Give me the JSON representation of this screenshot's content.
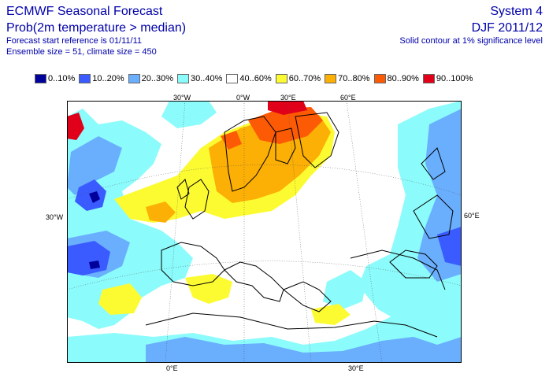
{
  "header": {
    "title": "ECMWF Seasonal Forecast",
    "subtitle": "Prob(2m temperature > median)",
    "forecast_start": "Forecast start reference is 01/11/11",
    "ensemble": "Ensemble size = 51, climate size = 450",
    "system": "System 4",
    "period": "DJF 2011/12",
    "contour_note": "Solid contour at 1% significance level"
  },
  "legend": [
    {
      "label": "0..10%",
      "color": "#00009b"
    },
    {
      "label": "10..20%",
      "color": "#3a5bff"
    },
    {
      "label": "20..30%",
      "color": "#6aaefe"
    },
    {
      "label": "30..40%",
      "color": "#8cfbfb"
    },
    {
      "label": "40..60%",
      "color": "#ffffff"
    },
    {
      "label": "60..70%",
      "color": "#fcfb32"
    },
    {
      "label": "70..80%",
      "color": "#fcaf04"
    },
    {
      "label": "80..90%",
      "color": "#fc5a04"
    },
    {
      "label": "90..100%",
      "color": "#e00019"
    }
  ],
  "axes": {
    "top": [
      "30°W",
      "0°W",
      "30°E",
      "60°E"
    ],
    "left": "30°W",
    "right": "60°E",
    "bottom": [
      "0°E",
      "30°E"
    ]
  }
}
